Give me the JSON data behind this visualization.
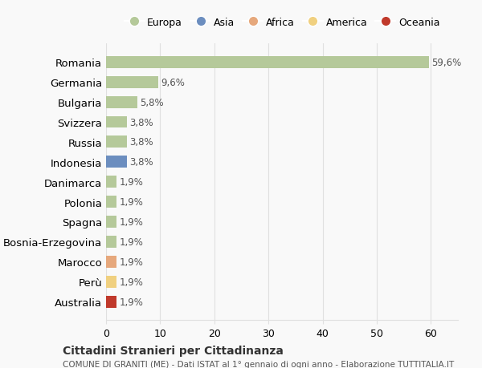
{
  "countries": [
    "Romania",
    "Germania",
    "Bulgaria",
    "Svizzera",
    "Russia",
    "Indonesia",
    "Danimarca",
    "Polonia",
    "Spagna",
    "Bosnia-Erzegovina",
    "Marocco",
    "Perù",
    "Australia"
  ],
  "values": [
    59.6,
    9.6,
    5.8,
    3.8,
    3.8,
    3.8,
    1.9,
    1.9,
    1.9,
    1.9,
    1.9,
    1.9,
    1.9
  ],
  "labels": [
    "59,6%",
    "9,6%",
    "5,8%",
    "3,8%",
    "3,8%",
    "3,8%",
    "1,9%",
    "1,9%",
    "1,9%",
    "1,9%",
    "1,9%",
    "1,9%",
    "1,9%"
  ],
  "colors": [
    "#b5c99a",
    "#b5c99a",
    "#b5c99a",
    "#b5c99a",
    "#b5c99a",
    "#6c8ebf",
    "#b5c99a",
    "#b5c99a",
    "#b5c99a",
    "#b5c99a",
    "#e6a87c",
    "#f0d080",
    "#c0392b"
  ],
  "legend_labels": [
    "Europa",
    "Asia",
    "Africa",
    "America",
    "Oceania"
  ],
  "legend_colors": [
    "#b5c99a",
    "#6c8ebf",
    "#e6a87c",
    "#f0d080",
    "#c0392b"
  ],
  "title": "Cittadini Stranieri per Cittadinanza",
  "subtitle": "COMUNE DI GRANITI (ME) - Dati ISTAT al 1° gennaio di ogni anno - Elaborazione TUTTITALIA.IT",
  "xlim": [
    0,
    65
  ],
  "xticks": [
    0,
    10,
    20,
    30,
    40,
    50,
    60
  ],
  "bg_color": "#f9f9f9",
  "grid_color": "#e0e0e0"
}
